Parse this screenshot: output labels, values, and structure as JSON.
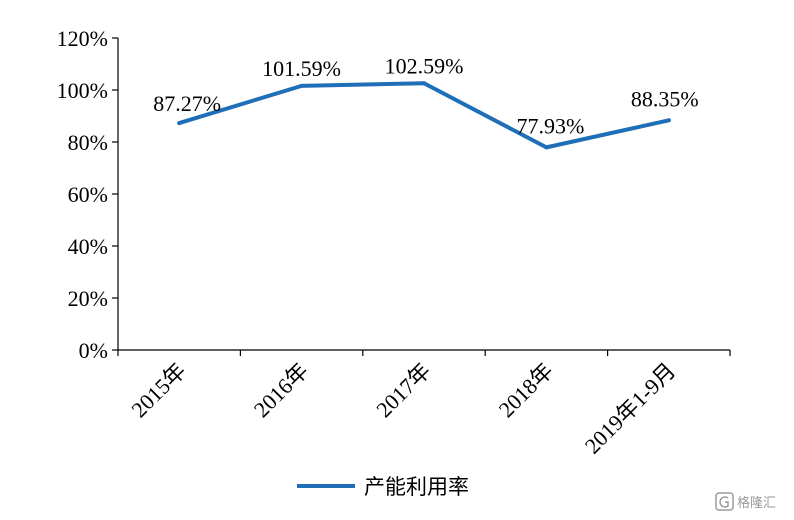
{
  "chart_data": {
    "type": "line",
    "categories": [
      "2015年",
      "2016年",
      "2017年",
      "2018年",
      "2019年1-9月"
    ],
    "series": [
      {
        "name": "产能利用率",
        "values": [
          87.27,
          101.59,
          102.59,
          77.93,
          88.35
        ],
        "labels": [
          "87.27%",
          "101.59%",
          "102.59%",
          "77.93%",
          "88.35%"
        ],
        "color": "#1f6fb8"
      }
    ],
    "y_ticks": [
      "0%",
      "20%",
      "40%",
      "60%",
      "80%",
      "100%",
      "120%"
    ],
    "ylim": [
      0,
      120
    ],
    "y_step": 20,
    "grid": false,
    "legend": "bottom-center"
  },
  "watermark": {
    "text": "格隆汇",
    "icon": "g-logo-icon"
  }
}
